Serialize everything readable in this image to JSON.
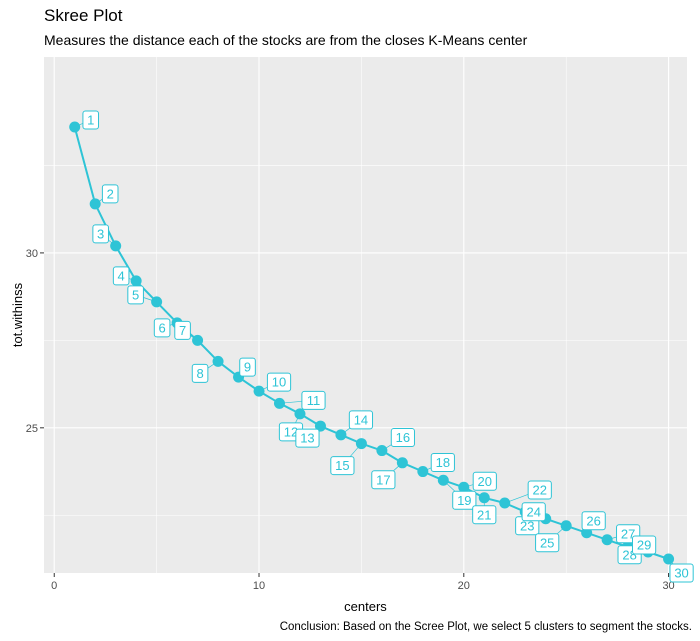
{
  "chart_data": {
    "type": "line",
    "title": "Skree Plot",
    "subtitle": "Measures the distance each of the stocks are from the closes K-Means center",
    "caption": "Conclusion: Based on the Scree Plot, we select 5 clusters to segment the stocks.",
    "xlabel": "centers",
    "ylabel": "tot.withinss",
    "xlim": [
      -0.5,
      30.9
    ],
    "ylim": [
      20.85,
      35.6
    ],
    "x_ticks": [
      0,
      10,
      20,
      30
    ],
    "y_ticks": [
      25,
      30
    ],
    "grid": true,
    "series": [
      {
        "name": "tot.withinss",
        "color": "#2EC4D6",
        "x": [
          1,
          2,
          3,
          4,
          5,
          6,
          7,
          8,
          9,
          10,
          11,
          12,
          13,
          14,
          15,
          16,
          17,
          18,
          19,
          20,
          21,
          22,
          23,
          24,
          25,
          26,
          27,
          28,
          29,
          30
        ],
        "values": [
          33.6,
          31.4,
          30.2,
          29.2,
          28.6,
          28.0,
          27.5,
          26.9,
          26.45,
          26.05,
          25.7,
          25.4,
          25.05,
          24.8,
          24.55,
          24.35,
          24.0,
          23.75,
          23.5,
          23.3,
          23.0,
          22.85,
          22.6,
          22.4,
          22.2,
          22.0,
          21.8,
          21.6,
          21.45,
          21.25
        ],
        "labels": [
          "1",
          "2",
          "3",
          "4",
          "5",
          "6",
          "7",
          "8",
          "9",
          "10",
          "11",
          "12",
          "13",
          "14",
          "15",
          "16",
          "17",
          "18",
          "19",
          "20",
          "21",
          "22",
          "23",
          "24",
          "25",
          "26",
          "27",
          "28",
          "29",
          "30"
        ]
      }
    ]
  },
  "colors": {
    "panel_background": "#EBEBEB",
    "grid_major": "#FFFFFF",
    "series": "#2EC4D6"
  }
}
